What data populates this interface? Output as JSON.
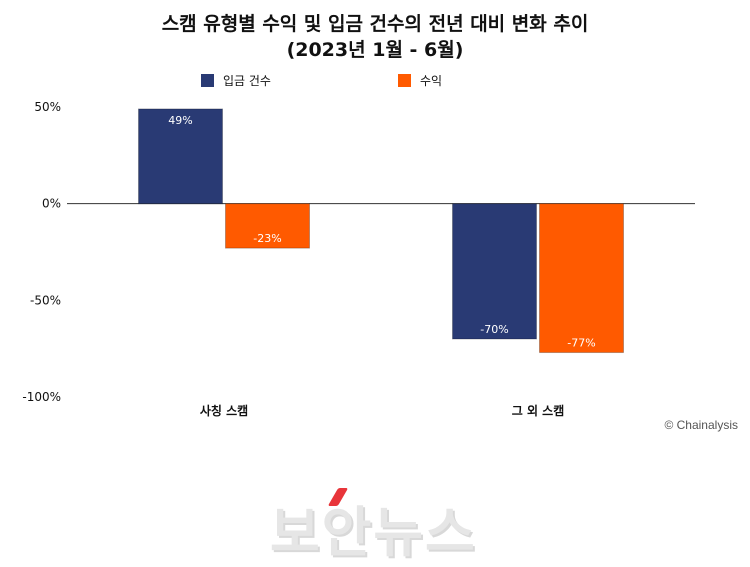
{
  "chart_data": {
    "type": "bar",
    "title_line1": "스캠 유형별 수익 및 입금 건수의 전년 대비 변화 추이",
    "title_line2": "(2023년 1월 - 6월)",
    "categories": [
      "사칭 스캠",
      "그 외 스캠"
    ],
    "series": [
      {
        "name": "입금 건수",
        "color": "#293a74",
        "values": [
          49,
          -70
        ],
        "labels": [
          "49%",
          "-70%"
        ]
      },
      {
        "name": "수익",
        "color": "#ff5a00",
        "values": [
          -23,
          -77
        ],
        "labels": [
          "-23%",
          "-77%"
        ]
      }
    ],
    "yticks": [
      50,
      0,
      -50,
      -100
    ],
    "ytick_labels": [
      "50%",
      "0%",
      "-50%",
      "-100%"
    ],
    "ylim": [
      -100,
      50
    ],
    "legend_position": "top",
    "grid": false,
    "zero_line": true
  },
  "credit": "© Chainalysis",
  "watermark": "보안뉴스",
  "colors": {
    "navy": "#293a74",
    "orange": "#ff5a00",
    "axis": "#333333"
  }
}
